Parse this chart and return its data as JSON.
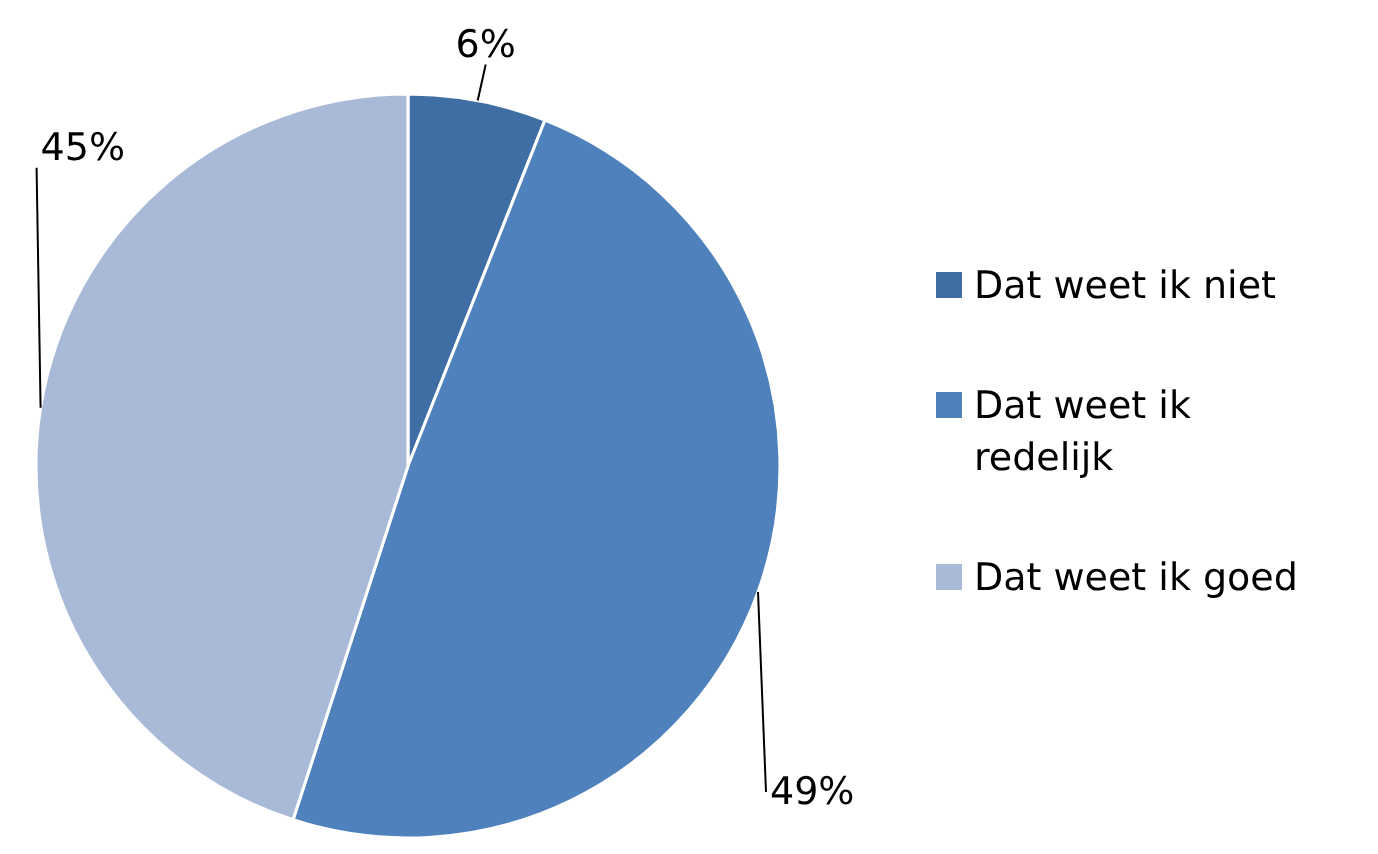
{
  "chart_data": {
    "type": "pie",
    "categories": [
      "Dat weet ik niet",
      "Dat weet ik redelijk",
      "Dat weet ik goed"
    ],
    "values": [
      6,
      49,
      45
    ],
    "value_labels": [
      "6%",
      "49%",
      "45%"
    ],
    "colors": [
      "#3f6ea4",
      "#4f81bd",
      "#a9bad8"
    ],
    "legend": "right"
  }
}
